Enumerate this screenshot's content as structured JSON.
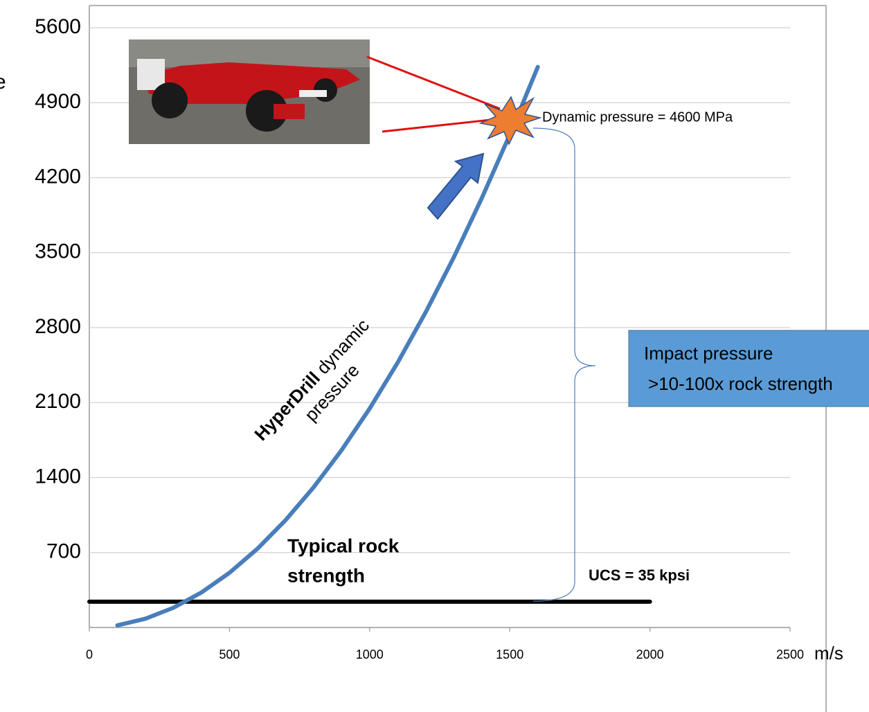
{
  "chart_data": {
    "type": "line",
    "y_label": "e",
    "x_label": "m/s",
    "xlim": [
      0,
      2500
    ],
    "xticks": [
      0,
      500,
      1000,
      1500,
      2000,
      2500
    ],
    "ylim": [
      0,
      5600
    ],
    "yticks": [
      700,
      1400,
      2100,
      2800,
      3500,
      4200,
      4900,
      5600
    ],
    "grid": true,
    "curve": {
      "color": "#4a7ebb",
      "x": [
        100,
        200,
        300,
        400,
        500,
        600,
        700,
        800,
        900,
        1000,
        1100,
        1200,
        1300,
        1400,
        1500,
        1600
      ],
      "values": [
        20,
        82,
        184,
        327,
        511,
        736,
        1002,
        1308,
        1656,
        2044,
        2473,
        2944,
        3454,
        4007,
        4600,
        5234
      ]
    },
    "rock_line": {
      "color": "#000000",
      "x": [
        0,
        2000
      ],
      "values": [
        241,
        241
      ]
    },
    "curve_label_bold": "HyperDrill",
    "curve_label_rest": "dynamic",
    "curve_label_line2": "pressure",
    "dynamic_label": "Dynamic pressure = 4600 MPa",
    "rock_label_line1": "Typical rock",
    "rock_label_line2": "strength",
    "ucs_label": "UCS = 35 kpsi",
    "impact_line1": "Impact pressure",
    "impact_line2": ">10-100x rock strength"
  }
}
